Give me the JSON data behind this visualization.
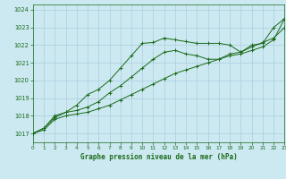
{
  "title": "Graphe pression niveau de la mer (hPa)",
  "bg_color": "#cce8f0",
  "line_color": "#1a6b1a",
  "grid_color": "#aacfdf",
  "xlim": [
    0,
    23
  ],
  "ylim": [
    1016.5,
    1024.3
  ],
  "yticks": [
    1017,
    1018,
    1019,
    1020,
    1021,
    1022,
    1023,
    1024
  ],
  "xticks": [
    0,
    1,
    2,
    3,
    4,
    5,
    6,
    7,
    8,
    9,
    10,
    11,
    12,
    13,
    14,
    15,
    16,
    17,
    18,
    19,
    20,
    21,
    22,
    23
  ],
  "series1": {
    "x": [
      0,
      1,
      2,
      3,
      4,
      5,
      6,
      7,
      8,
      9,
      10,
      11,
      12,
      13,
      14,
      15,
      16,
      17,
      18,
      19,
      20,
      21,
      22,
      23
    ],
    "y": [
      1017.0,
      1017.3,
      1018.0,
      1018.2,
      1018.6,
      1019.2,
      1019.5,
      1020.0,
      1020.7,
      1021.4,
      1022.1,
      1022.15,
      1022.4,
      1022.3,
      1022.2,
      1022.1,
      1022.1,
      1022.1,
      1022.0,
      1021.6,
      1022.0,
      1022.1,
      1023.0,
      1023.5
    ]
  },
  "series2": {
    "x": [
      0,
      1,
      2,
      3,
      4,
      5,
      6,
      7,
      8,
      9,
      10,
      11,
      12,
      13,
      14,
      15,
      16,
      17,
      18,
      19,
      20,
      21,
      22,
      23
    ],
    "y": [
      1017.0,
      1017.3,
      1017.9,
      1018.2,
      1018.3,
      1018.5,
      1018.8,
      1019.3,
      1019.7,
      1020.2,
      1020.7,
      1021.2,
      1021.6,
      1021.7,
      1021.5,
      1021.4,
      1021.2,
      1021.2,
      1021.5,
      1021.6,
      1021.9,
      1022.15,
      1022.4,
      1023.0
    ]
  },
  "series3": {
    "x": [
      0,
      1,
      2,
      3,
      4,
      5,
      6,
      7,
      8,
      9,
      10,
      11,
      12,
      13,
      14,
      15,
      16,
      17,
      18,
      19,
      20,
      21,
      22,
      23
    ],
    "y": [
      1017.0,
      1017.2,
      1017.8,
      1018.0,
      1018.1,
      1018.2,
      1018.4,
      1018.6,
      1018.9,
      1019.2,
      1019.5,
      1019.8,
      1020.1,
      1020.4,
      1020.6,
      1020.8,
      1021.0,
      1021.2,
      1021.4,
      1021.5,
      1021.7,
      1021.9,
      1022.3,
      1023.5
    ]
  }
}
